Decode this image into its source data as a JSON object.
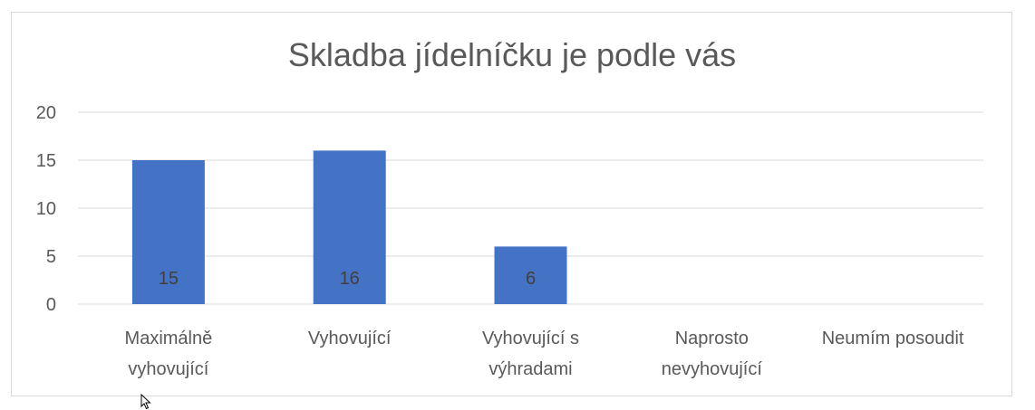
{
  "chart_data": {
    "type": "bar",
    "title": "Skladba jídelníčku je podle vás",
    "categories": [
      [
        "Maximálně",
        "vyhovující"
      ],
      [
        "Vyhovující"
      ],
      [
        "Vyhovující s",
        "výhradami"
      ],
      [
        "Naprosto",
        "nevyhovující"
      ],
      [
        "Neumím posoudit"
      ]
    ],
    "values": [
      15,
      16,
      6,
      0,
      0
    ],
    "data_labels": [
      "15",
      "16",
      "6",
      "",
      ""
    ],
    "ylim": [
      0,
      20
    ],
    "yticks": [
      0,
      5,
      10,
      15,
      20
    ],
    "xlabel": "",
    "ylabel": "",
    "grid": true,
    "legend": "none",
    "bar_color": "#4472c4",
    "gridline_color": "#d9d9d9",
    "text_color": "#595959"
  }
}
